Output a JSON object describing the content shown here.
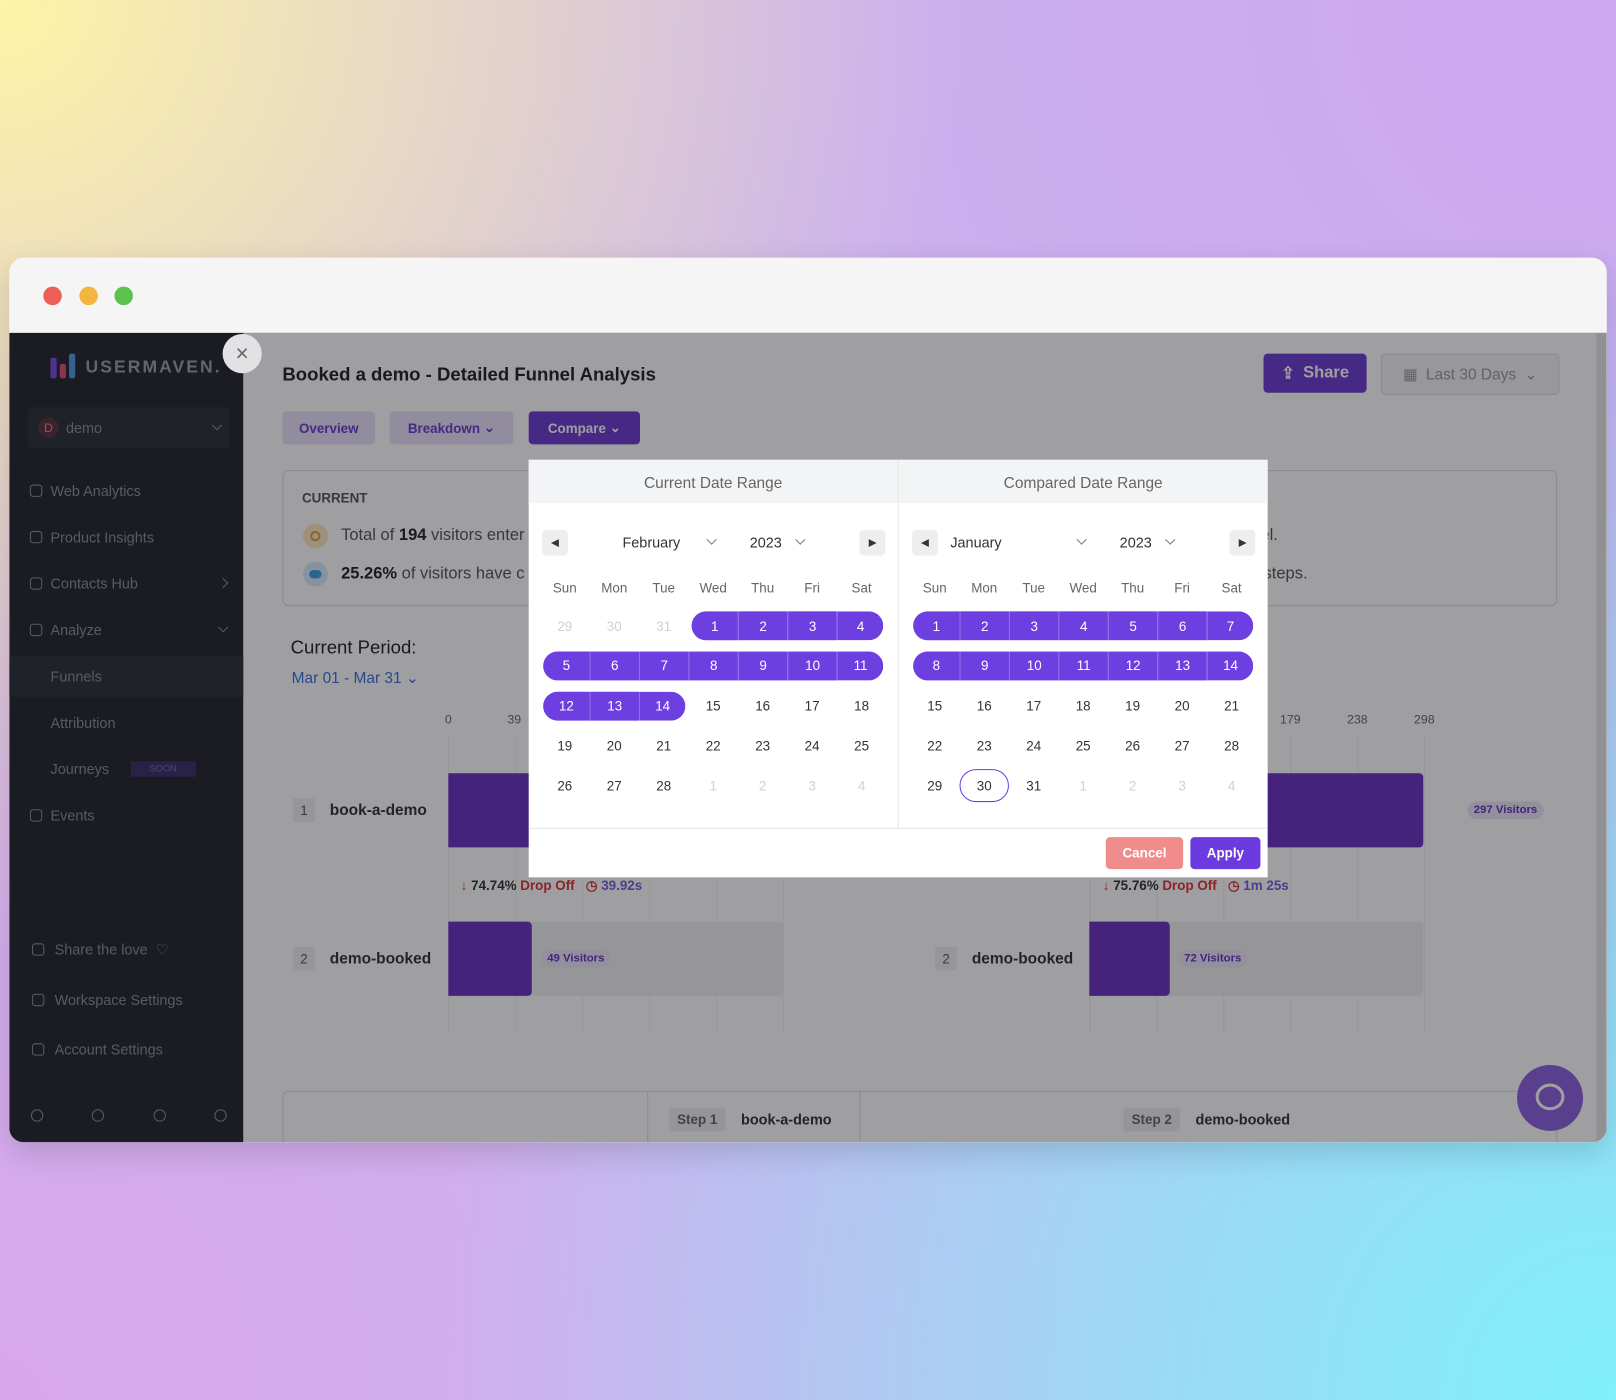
{
  "window": {
    "sidebar": {
      "logo": "USERMAVEN.",
      "workspace_initial": "D",
      "workspace": "demo",
      "nav": [
        "Web Analytics",
        "Product Insights",
        "Contacts Hub",
        "Analyze",
        "Funnels",
        "Attribution",
        "Journeys",
        "Events"
      ],
      "soon": "SOON",
      "bottom": [
        "Share the love",
        "Workspace Settings",
        "Account Settings"
      ]
    },
    "header": {
      "title": "Booked a demo - Detailed Funnel Analysis",
      "share": "Share",
      "date_filter": "Last 30 Days"
    },
    "tabs": [
      "Overview",
      "Breakdown",
      "Compare"
    ],
    "summary": {
      "label": "CURRENT",
      "line1": [
        "Total of",
        "194",
        "visitors enter"
      ],
      "line2": [
        "25.26%",
        "of visitors have c"
      ],
      "right1": "el.",
      "right2": "l steps."
    },
    "period": {
      "label": "Current Period:",
      "range": "Mar 01 - Mar 31"
    },
    "funnels": [
      {
        "axis": [
          "0",
          "39"
        ],
        "steps": [
          {
            "num": "1",
            "name": "book-a-demo"
          },
          {
            "num": "2",
            "name": "demo-booked",
            "visitors": "49 Visitors"
          }
        ],
        "drop": {
          "pct": "74.74%",
          "label": "Drop Off",
          "time": "39.92s"
        }
      },
      {
        "axis": [
          "179",
          "238",
          "298"
        ],
        "steps": [
          {
            "visitors": "297 Visitors"
          },
          {
            "num": "2",
            "name": "demo-booked",
            "visitors": "72 Visitors"
          }
        ],
        "drop": {
          "pct": "75.76%",
          "label": "Drop Off",
          "time": "1m 25s"
        }
      }
    ],
    "table": {
      "steps": [
        {
          "label": "Step 1",
          "name": "book-a-demo"
        },
        {
          "label": "Step 2",
          "name": "demo-booked"
        }
      ]
    },
    "modal": {
      "calendars": [
        {
          "title": "Current Date Range",
          "month": "February",
          "year": "2023",
          "weekdays": [
            "Sun",
            "Mon",
            "Tue",
            "Wed",
            "Thu",
            "Fri",
            "Sat"
          ],
          "weeks": [
            [
              29,
              30,
              31,
              1,
              2,
              3,
              4
            ],
            [
              5,
              6,
              7,
              8,
              9,
              10,
              11
            ],
            [
              12,
              13,
              14,
              15,
              16,
              17,
              18
            ],
            [
              19,
              20,
              21,
              22,
              23,
              24,
              25
            ],
            [
              26,
              27,
              28,
              1,
              2,
              3,
              4
            ]
          ],
          "selected": {
            "from": 1,
            "to": 14
          }
        },
        {
          "title": "Compared Date Range",
          "month": "January",
          "year": "2023",
          "weekdays": [
            "Sun",
            "Mon",
            "Tue",
            "Wed",
            "Thu",
            "Fri",
            "Sat"
          ],
          "weeks": [
            [
              1,
              2,
              3,
              4,
              5,
              6,
              7
            ],
            [
              8,
              9,
              10,
              11,
              12,
              13,
              14
            ],
            [
              15,
              16,
              17,
              18,
              19,
              20,
              21
            ],
            [
              22,
              23,
              24,
              25,
              26,
              27,
              28
            ],
            [
              29,
              30,
              31,
              1,
              2,
              3,
              4
            ]
          ],
          "selected": {
            "from": 1,
            "to": 14
          },
          "today": 30
        }
      ],
      "cancel": "Cancel",
      "apply": "Apply"
    }
  }
}
